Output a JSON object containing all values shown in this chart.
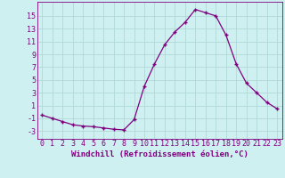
{
  "x": [
    0,
    1,
    2,
    3,
    4,
    5,
    6,
    7,
    8,
    9,
    10,
    11,
    12,
    13,
    14,
    15,
    16,
    17,
    18,
    19,
    20,
    21,
    22,
    23
  ],
  "y": [
    -0.5,
    -1.0,
    -1.5,
    -2.0,
    -2.2,
    -2.3,
    -2.5,
    -2.7,
    -2.8,
    -1.2,
    4.0,
    7.5,
    10.5,
    12.5,
    14.0,
    16.0,
    15.5,
    15.0,
    12.0,
    7.5,
    4.5,
    3.0,
    1.5,
    0.5
  ],
  "line_color": "#7f007f",
  "marker": "+",
  "markersize": 3.5,
  "linewidth": 0.9,
  "bg_color": "#cff0f0",
  "grid_color": "#b0d8d8",
  "xlabel": "Windchill (Refroidissement éolien,°C)",
  "xlabel_color": "#7f007f",
  "tick_color": "#7f007f",
  "ylabel_ticks": [
    -3,
    -1,
    1,
    3,
    5,
    7,
    9,
    11,
    13,
    15
  ],
  "ylim": [
    -4.2,
    17.2
  ],
  "xlim": [
    -0.5,
    23.5
  ],
  "xlabel_fontsize": 6.5,
  "tick_fontsize": 6.0,
  "spine_color": "#7f007f"
}
